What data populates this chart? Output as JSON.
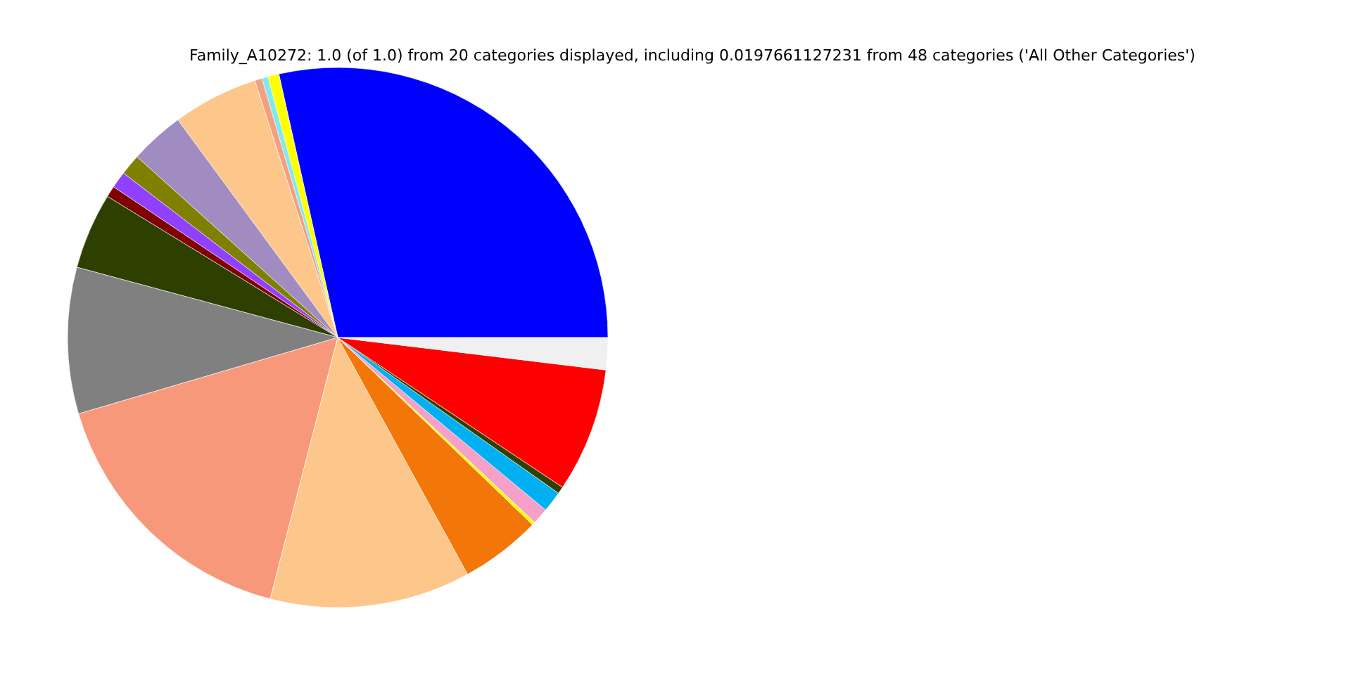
{
  "chart_data": {
    "type": "pie",
    "title": "Family_A10272: 1.0 (of 1.0) from 20 categories displayed, including 0.0197661127231 from 48 categories ('All Other Categories')",
    "categories": [
      null,
      null,
      null,
      null,
      null,
      null,
      null,
      null,
      null,
      null,
      null,
      null,
      null,
      null,
      null,
      null,
      null,
      null,
      null,
      null
    ],
    "values": [
      28.5,
      0.67,
      0.36,
      0.44,
      5.11,
      3.25,
      1.25,
      1.0,
      0.67,
      4.56,
      8.75,
      16.42,
      12.0,
      4.83,
      0.19,
      0.97,
      1.25,
      0.42,
      7.44,
      1.92
    ],
    "colors": [
      "#0000ff",
      "#ffff00",
      "#80e8f0",
      "#f4a080",
      "#fdc68a",
      "#a08cc0",
      "#808000",
      "#9040ff",
      "#800000",
      "#2d4000",
      "#808080",
      "#f8987a",
      "#fdc68a",
      "#f27608",
      "#ffff00",
      "#f4a0c8",
      "#00b0f0",
      "#2d4000",
      "#ff0000",
      "#f0f0f0"
    ]
  }
}
